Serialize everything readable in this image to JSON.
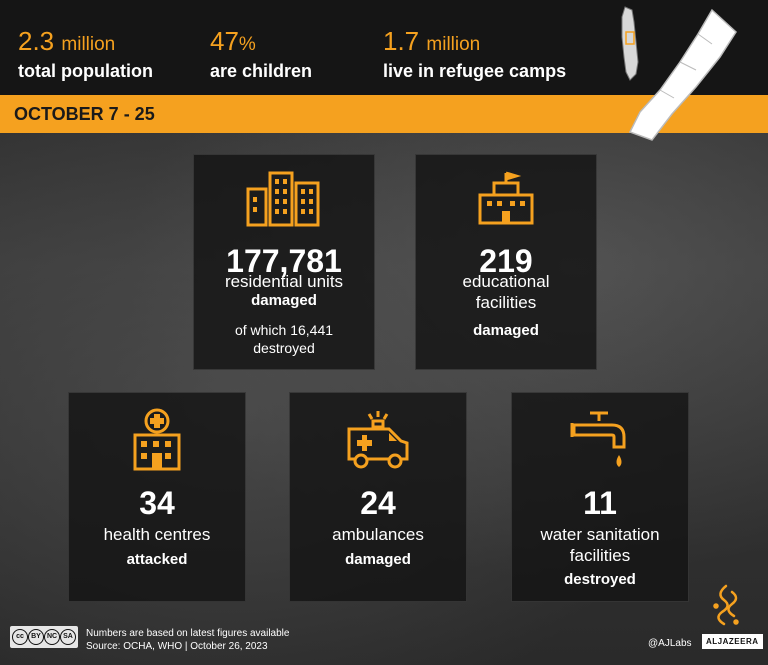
{
  "stats": [
    {
      "value": "2.3",
      "unit": "million",
      "label": "total population"
    },
    {
      "value": "47",
      "unit": "%",
      "label": "are children"
    },
    {
      "value": "1.7",
      "unit": "million",
      "label": "live in refugee camps"
    }
  ],
  "date_range": "OCTOBER 7 - 25",
  "cards": {
    "residential": {
      "number": "177,781",
      "desc": "residential units",
      "status": "damaged",
      "extra_1": "of which 16,441",
      "extra_2": "destroyed",
      "icon": "buildings-icon"
    },
    "educational": {
      "number": "219",
      "desc_1": "educational",
      "desc_2": "facilities",
      "status": "damaged",
      "icon": "school-icon"
    },
    "health": {
      "number": "34",
      "desc": "health centres",
      "status": "attacked",
      "icon": "hospital-icon"
    },
    "ambulances": {
      "number": "24",
      "desc": "ambulances",
      "status": "damaged",
      "icon": "ambulance-icon"
    },
    "water": {
      "number": "11",
      "desc_1": "water sanitation",
      "desc_2": "facilities",
      "status": "destroyed",
      "icon": "water-tap-icon"
    }
  },
  "footer": {
    "note": "Numbers are based on latest figures available",
    "source": "Source: OCHA, WHO  |  October 26, 2023",
    "license": [
      "cc",
      "BY",
      "NC",
      "SA"
    ],
    "handle": "@AJLabs",
    "brand": "ALJAZEERA"
  },
  "colors": {
    "accent": "#f5a11f",
    "dark": "#151515",
    "text": "#ffffff"
  }
}
